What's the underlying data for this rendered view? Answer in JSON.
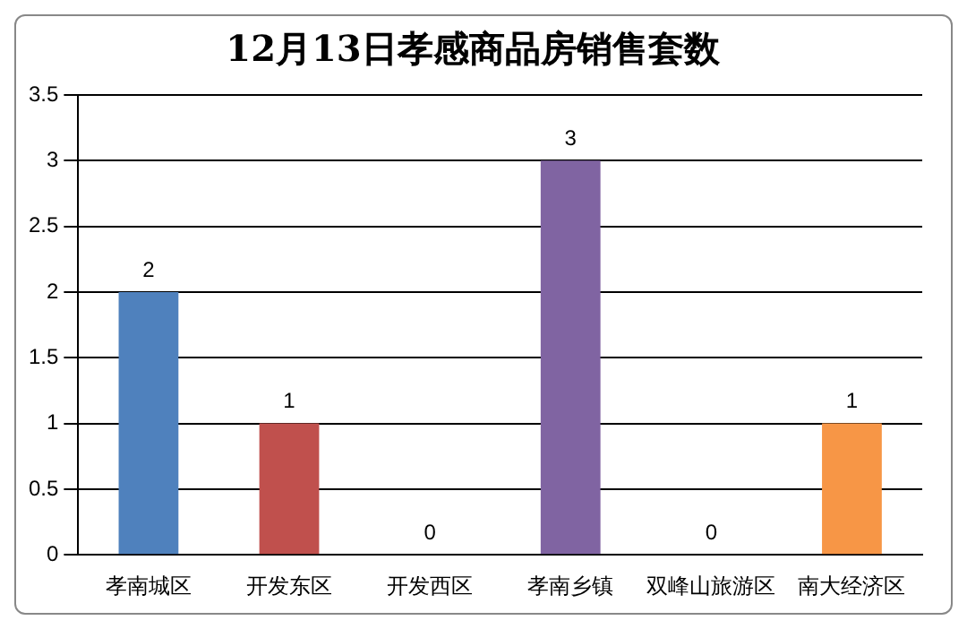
{
  "chart_data": {
    "type": "bar",
    "title": "12月13日孝感商品房销售套数",
    "categories": [
      "孝南城区",
      "开发东区",
      "开发西区",
      "孝南乡镇",
      "双峰山旅游区",
      "南大经济区"
    ],
    "values": [
      2,
      1,
      0,
      3,
      0,
      1
    ],
    "colors": [
      "#4f81bd",
      "#c0504d",
      "#9bbb59",
      "#8064a2",
      "#4bacc6",
      "#f79646"
    ],
    "ylim": [
      0,
      3.5
    ],
    "yticks": [
      0,
      0.5,
      1,
      1.5,
      2,
      2.5,
      3,
      3.5
    ],
    "grid": "y",
    "data_labels": true
  }
}
